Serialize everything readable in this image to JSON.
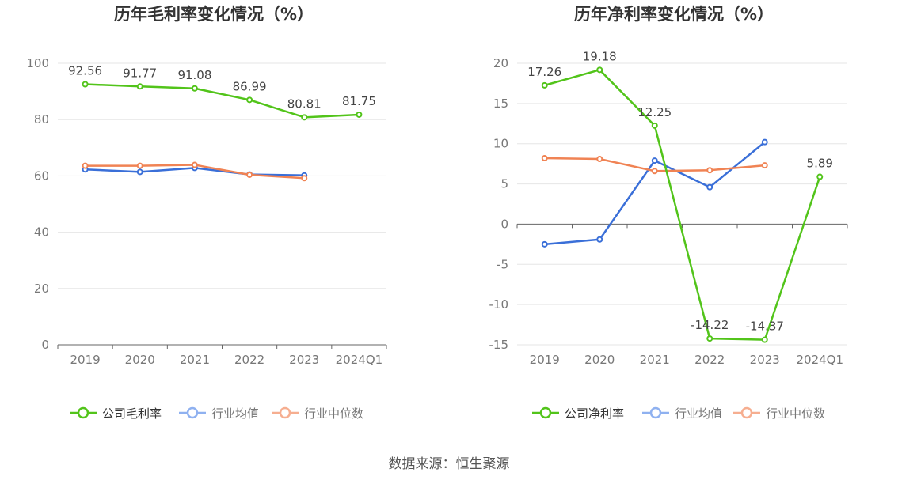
{
  "colors": {
    "company": "#52c41a",
    "industry_avg": "#3a6fd8",
    "industry_median": "#f08354",
    "legend_avg": "#8fb1f0",
    "legend_median": "#f6ae90"
  },
  "source": "数据来源：恒生聚源",
  "chart_data": [
    {
      "type": "line",
      "title": "历年毛利率变化情况（%）",
      "categories": [
        "2019",
        "2020",
        "2021",
        "2022",
        "2023",
        "2024Q1"
      ],
      "ylim": [
        0,
        100
      ],
      "yticks": [
        0,
        20,
        40,
        60,
        80,
        100
      ],
      "grid": true,
      "legend_position": "bottom",
      "series": [
        {
          "name": "公司毛利率",
          "key": "company",
          "values": [
            92.56,
            91.77,
            91.08,
            86.99,
            80.81,
            81.75
          ],
          "labels": [
            "92.56",
            "91.77",
            "91.08",
            "86.99",
            "80.81",
            "81.75"
          ]
        },
        {
          "name": "行业均值",
          "key": "industry_avg",
          "values": [
            62.3,
            61.4,
            62.8,
            60.5,
            60.2,
            null
          ]
        },
        {
          "name": "行业中位数",
          "key": "industry_median",
          "values": [
            63.6,
            63.6,
            63.9,
            60.4,
            59.2,
            null
          ]
        }
      ]
    },
    {
      "type": "line",
      "title": "历年净利率变化情况（%）",
      "categories": [
        "2019",
        "2020",
        "2021",
        "2022",
        "2023",
        "2024Q1"
      ],
      "ylim": [
        -15,
        20
      ],
      "yticks": [
        -15,
        -10,
        -5,
        0,
        5,
        10,
        15,
        20
      ],
      "grid": true,
      "legend_position": "bottom",
      "series": [
        {
          "name": "公司净利率",
          "key": "company",
          "values": [
            17.26,
            19.18,
            12.25,
            -14.22,
            -14.37,
            5.89
          ],
          "labels": [
            "17.26",
            "19.18",
            "12.25",
            "-14.22",
            "-14.37",
            "5.89"
          ]
        },
        {
          "name": "行业均值",
          "key": "industry_avg",
          "values": [
            -2.5,
            -1.9,
            7.9,
            4.6,
            10.2,
            null
          ]
        },
        {
          "name": "行业中位数",
          "key": "industry_median",
          "values": [
            8.2,
            8.1,
            6.6,
            6.7,
            7.3,
            null
          ]
        }
      ]
    }
  ]
}
